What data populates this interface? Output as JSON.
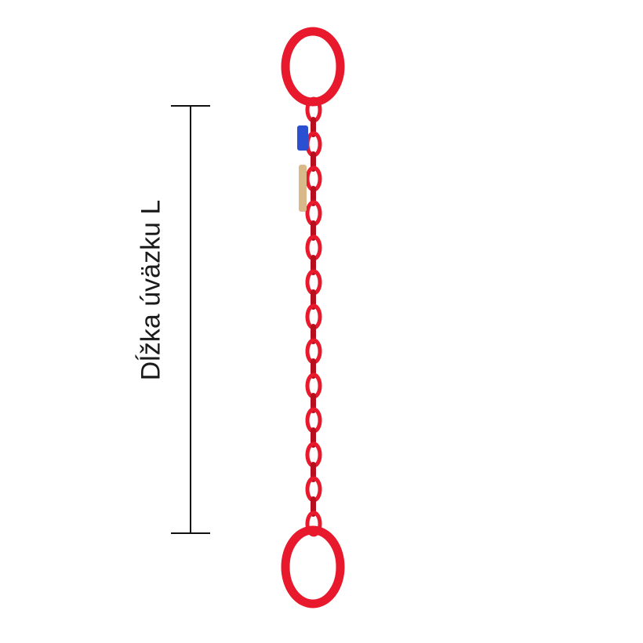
{
  "dimension": {
    "label": "Dĺžka úväzku L"
  },
  "colors": {
    "chain": "#e8192c",
    "chain_dark": "#b80f1e",
    "tag": "#2a4fd0",
    "line": "#111111"
  }
}
